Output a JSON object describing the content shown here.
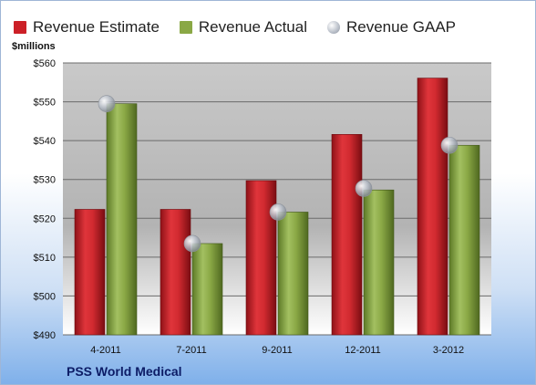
{
  "chart_data": {
    "type": "bar",
    "ylabel": "$millions",
    "footer": "PSS World Medical",
    "categories": [
      "4-2011",
      "7-2011",
      "9-2011",
      "12-2011",
      "3-2012"
    ],
    "y_ticks": [
      "$490",
      "$500",
      "$510",
      "$520",
      "$530",
      "$540",
      "$550",
      "$560"
    ],
    "ylim": [
      490,
      560
    ],
    "grid": true,
    "legend_position": "top",
    "series": [
      {
        "name": "Revenue Estimate",
        "kind": "bar",
        "color": "#cc2027",
        "values": [
          522.3,
          522.3,
          529.7,
          541.6,
          556.1
        ]
      },
      {
        "name": "Revenue Actual",
        "kind": "bar",
        "color": "#8aa845",
        "values": [
          549.5,
          513.5,
          521.6,
          527.3,
          538.8
        ]
      },
      {
        "name": "Revenue GAAP",
        "kind": "marker",
        "color": "#b8bec8",
        "values": [
          549.5,
          513.5,
          521.6,
          527.7,
          538.8
        ]
      }
    ]
  }
}
